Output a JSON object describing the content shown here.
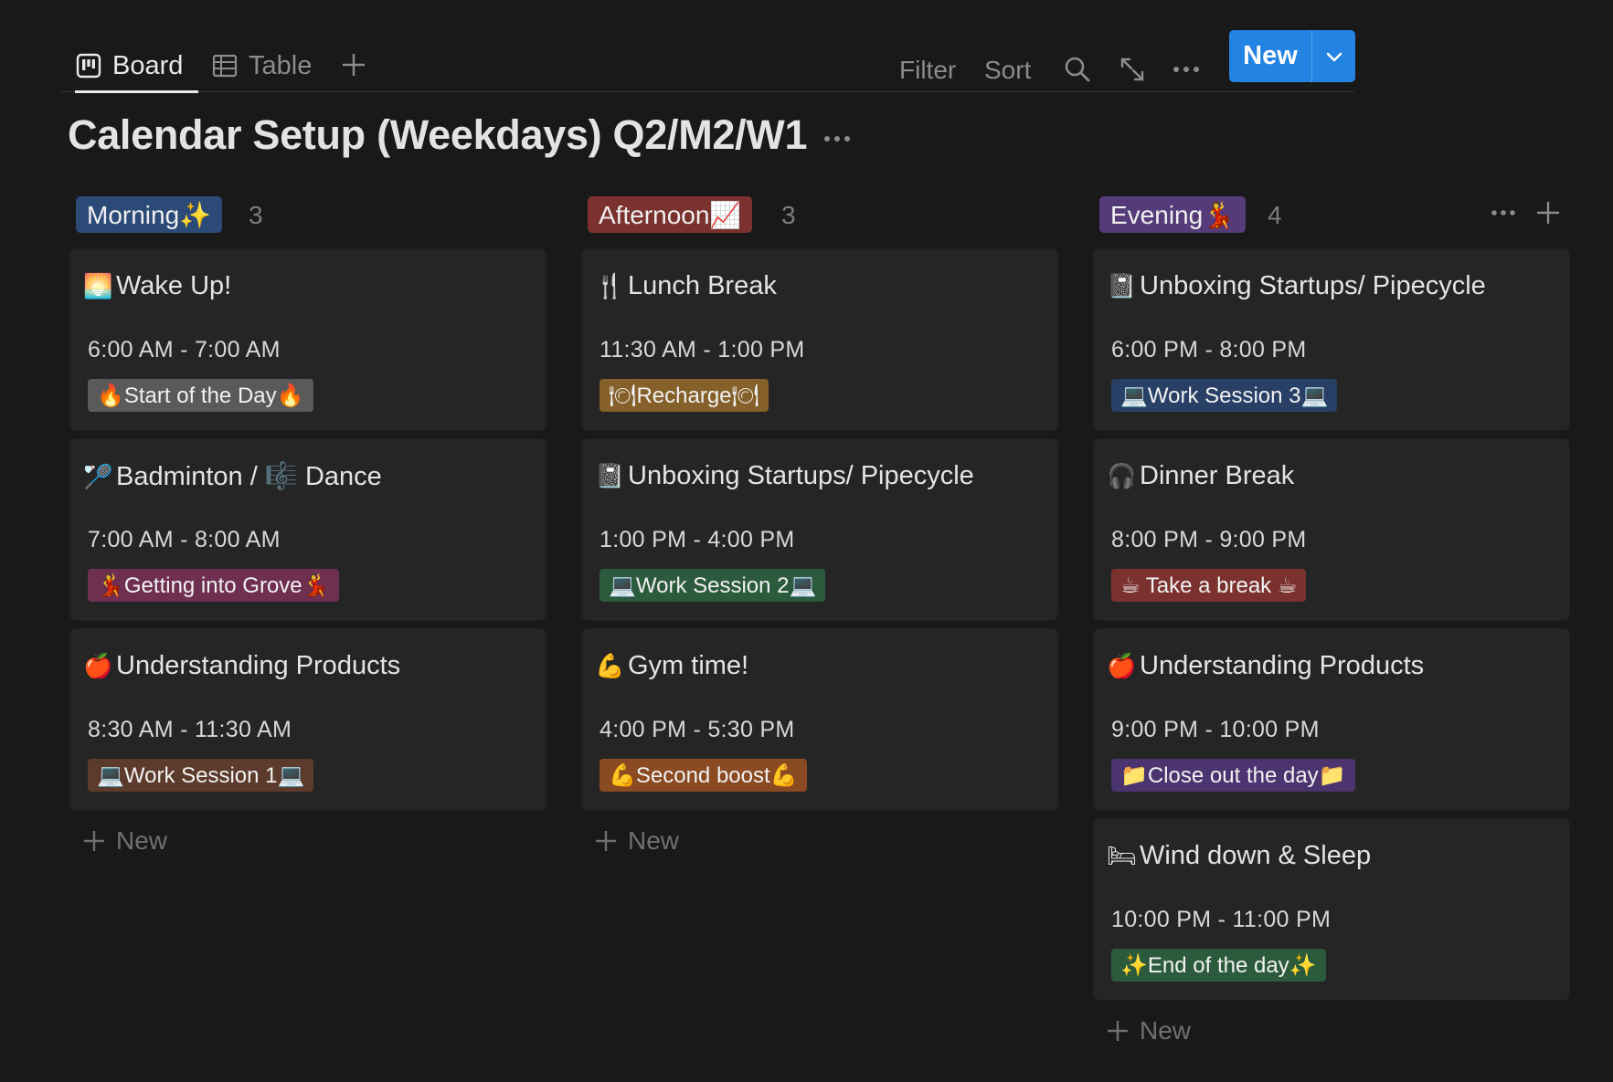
{
  "views": {
    "board_label": "Board",
    "table_label": "Table"
  },
  "toolbar": {
    "filter_label": "Filter",
    "sort_label": "Sort",
    "new_label": "New"
  },
  "page": {
    "title": "Calendar Setup (Weekdays) Q2/M2/W1"
  },
  "colors": {
    "accent": "#2383e2",
    "morning": "#2c4a78",
    "afternoon": "#7b322f",
    "evening": "#553b7a"
  },
  "columns": [
    {
      "label": "Morning✨",
      "count": "3",
      "new_label": "New",
      "cards": [
        {
          "emoji": "🌅",
          "title": "Wake Up!",
          "time": "6:00 AM - 7:00 AM",
          "tag": "🔥Start of the Day🔥",
          "tag_color": "#5a5a5a"
        },
        {
          "emoji": "🏸",
          "title": "Badminton / 🎼 Dance",
          "time": "7:00 AM - 8:00 AM",
          "tag": "💃Getting into Grove💃",
          "tag_color": "#6e2f50"
        },
        {
          "emoji": "🍎",
          "title": "Understanding Products",
          "time": "8:30 AM - 11:30 AM",
          "tag": "💻Work Session 1💻",
          "tag_color": "#5c3a2c"
        }
      ]
    },
    {
      "label": "Afternoon📈",
      "count": "3",
      "new_label": "New",
      "cards": [
        {
          "emoji": "🍴",
          "title": "Lunch Break",
          "time": "11:30 AM - 1:00 PM",
          "tag": "🍽Recharge🍽",
          "tag_color": "#85602a"
        },
        {
          "emoji": "📓",
          "title": "Unboxing Startups/ Pipecycle",
          "time": "1:00 PM - 4:00 PM",
          "tag": "💻Work Session 2💻",
          "tag_color": "#2c5a3d"
        },
        {
          "emoji": "💪",
          "title": "Gym time!",
          "time": "4:00 PM - 5:30 PM",
          "tag": "💪Second boost💪",
          "tag_color": "#8a4a22"
        }
      ]
    },
    {
      "label": "Evening💃",
      "count": "4",
      "new_label": "New",
      "cards": [
        {
          "emoji": "📓",
          "title": "Unboxing Startups/ Pipecycle",
          "time": "6:00 PM - 8:00 PM",
          "tag": "💻Work Session 3💻",
          "tag_color": "#283f66"
        },
        {
          "emoji": "🎧",
          "title": "Dinner Break",
          "time": "8:00 PM - 9:00 PM",
          "tag": "☕ Take a break ☕",
          "tag_color": "#7b322f"
        },
        {
          "emoji": "🍎",
          "title": "Understanding Products",
          "time": "9:00 PM - 10:00 PM",
          "tag": "📁Close out the day📁",
          "tag_color": "#4b3470"
        },
        {
          "emoji": "🛏",
          "title": "Wind down & Sleep",
          "time": "10:00 PM - 11:00 PM",
          "tag": "✨End of the day✨",
          "tag_color": "#2c5a3d"
        }
      ]
    }
  ]
}
